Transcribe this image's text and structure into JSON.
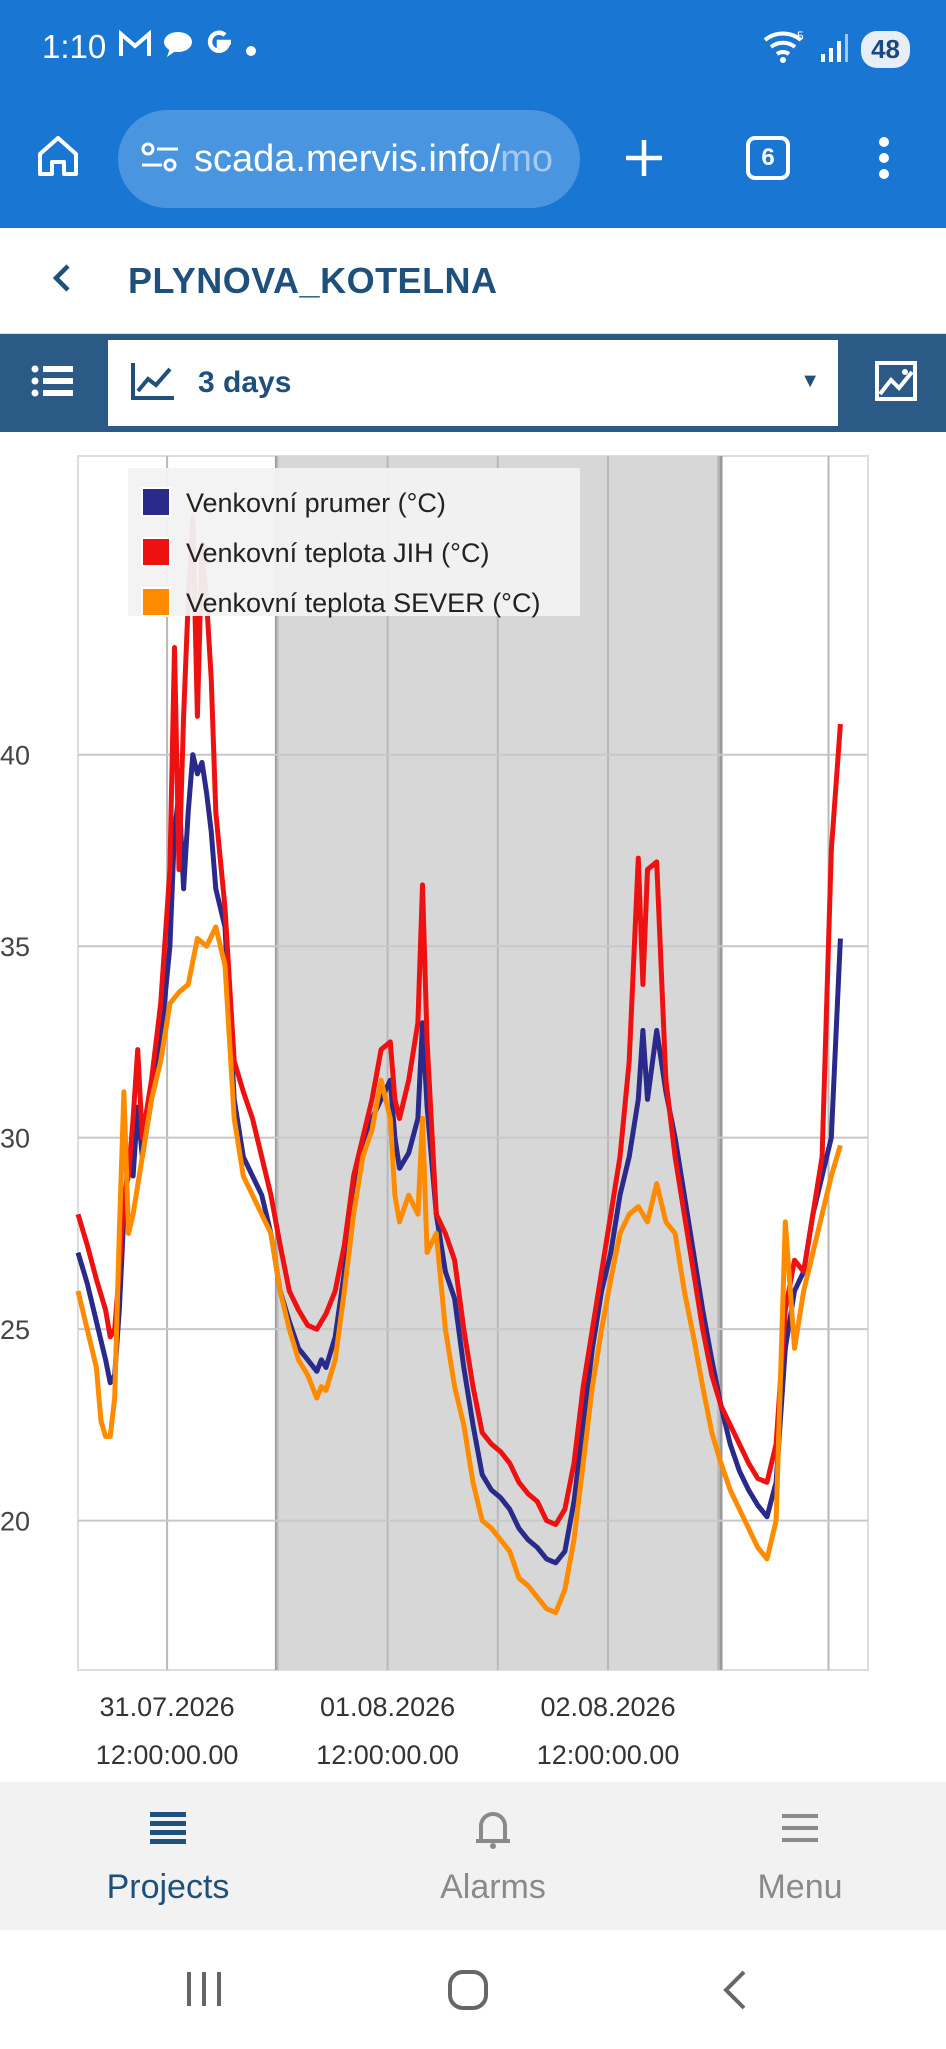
{
  "status": {
    "time": "1:10",
    "battery": "48"
  },
  "browser": {
    "url_main": "scada.mervis.info/",
    "url_fade": "mo",
    "tab_count": "6"
  },
  "header": {
    "title": "PLYNOVA_KOTELNA"
  },
  "toolbar": {
    "range_label": "3 days"
  },
  "nav": {
    "projects": "Projects",
    "alarms": "Alarms",
    "menu": "Menu"
  },
  "colors": {
    "accent": "#1976d2",
    "toolbar": "#2b5a86",
    "series1": "#2a2a8a",
    "series2": "#ee1111",
    "series3": "#ff8c00"
  },
  "chart_data": {
    "type": "line",
    "title": "",
    "xlabel": "",
    "ylabel": "",
    "x_unit": "hours",
    "xlim": [
      0,
      86
    ],
    "ylim": [
      16.1,
      47.8
    ],
    "yticks": [
      20,
      25,
      30,
      35,
      40
    ],
    "xticks": [
      {
        "x": 9.7,
        "date": "31.07.2026",
        "time": "12:00:00.00"
      },
      {
        "x": 33.7,
        "date": "01.08.2026",
        "time": "12:00:00.00"
      },
      {
        "x": 57.7,
        "date": "02.08.2026",
        "time": "12:00:00.00"
      }
    ],
    "shaded_ranges": [
      [
        21.6,
        70.0
      ]
    ],
    "legend": {
      "position": "top-left"
    },
    "grid": true,
    "series": [
      {
        "name": "Venkovní prumer (°C)",
        "color": "#2a2a8a",
        "points": [
          [
            0,
            27.0
          ],
          [
            1,
            26.2
          ],
          [
            2,
            25.2
          ],
          [
            3,
            24.2
          ],
          [
            3.5,
            23.6
          ],
          [
            4,
            23.8
          ],
          [
            4.5,
            25.5
          ],
          [
            5,
            28.0
          ],
          [
            5.5,
            29.5
          ],
          [
            6,
            29.0
          ],
          [
            6.5,
            30.8
          ],
          [
            7,
            29.5
          ],
          [
            8,
            31.0
          ],
          [
            9,
            32.5
          ],
          [
            10,
            35.0
          ],
          [
            10.5,
            38.0
          ],
          [
            11,
            39.0
          ],
          [
            11.5,
            36.5
          ],
          [
            12,
            38.5
          ],
          [
            12.5,
            40.0
          ],
          [
            13,
            39.5
          ],
          [
            13.5,
            39.8
          ],
          [
            14,
            39.0
          ],
          [
            14.5,
            38.0
          ],
          [
            15,
            36.5
          ],
          [
            16,
            35.5
          ],
          [
            17,
            31.0
          ],
          [
            18,
            29.5
          ],
          [
            19,
            29.0
          ],
          [
            20,
            28.5
          ],
          [
            21,
            27.5
          ],
          [
            22,
            26.0
          ],
          [
            23,
            25.2
          ],
          [
            24,
            24.5
          ],
          [
            25,
            24.2
          ],
          [
            26,
            23.9
          ],
          [
            26.5,
            24.2
          ],
          [
            27,
            24.0
          ],
          [
            28,
            24.8
          ],
          [
            29,
            26.5
          ],
          [
            30,
            28.5
          ],
          [
            31,
            29.8
          ],
          [
            32,
            30.5
          ],
          [
            33,
            31.0
          ],
          [
            34,
            31.5
          ],
          [
            34.5,
            30.0
          ],
          [
            35,
            29.2
          ],
          [
            36,
            29.6
          ],
          [
            37,
            30.5
          ],
          [
            37.5,
            33.0
          ],
          [
            38,
            30.8
          ],
          [
            39,
            28.0
          ],
          [
            40,
            26.5
          ],
          [
            41,
            25.8
          ],
          [
            42,
            24.0
          ],
          [
            43,
            22.5
          ],
          [
            44,
            21.2
          ],
          [
            45,
            20.8
          ],
          [
            46,
            20.6
          ],
          [
            47,
            20.3
          ],
          [
            48,
            19.8
          ],
          [
            49,
            19.5
          ],
          [
            50,
            19.3
          ],
          [
            51,
            19.0
          ],
          [
            52,
            18.9
          ],
          [
            53,
            19.2
          ],
          [
            54,
            20.5
          ],
          [
            55,
            22.5
          ],
          [
            56,
            24.5
          ],
          [
            57,
            26.0
          ],
          [
            58,
            27.0
          ],
          [
            59,
            28.5
          ],
          [
            60,
            29.5
          ],
          [
            61,
            31.0
          ],
          [
            61.5,
            32.8
          ],
          [
            62,
            31.0
          ],
          [
            63,
            32.8
          ],
          [
            64,
            31.2
          ],
          [
            65,
            30.0
          ],
          [
            66,
            28.5
          ],
          [
            67,
            27.0
          ],
          [
            68,
            25.5
          ],
          [
            69,
            24.2
          ],
          [
            70,
            23.0
          ],
          [
            71,
            22.0
          ],
          [
            72,
            21.3
          ],
          [
            73,
            20.8
          ],
          [
            74,
            20.4
          ],
          [
            75,
            20.1
          ],
          [
            76,
            21.0
          ],
          [
            77,
            24.5
          ],
          [
            78,
            26.0
          ],
          [
            79,
            26.5
          ],
          [
            80,
            28.0
          ],
          [
            81,
            29.0
          ],
          [
            82,
            30.0
          ],
          [
            83,
            35.2
          ]
        ]
      },
      {
        "name": "Venkovní teplota JIH (°C)",
        "color": "#ee1111",
        "points": [
          [
            0,
            28.0
          ],
          [
            1,
            27.2
          ],
          [
            2,
            26.3
          ],
          [
            3,
            25.5
          ],
          [
            3.5,
            24.8
          ],
          [
            4,
            25.0
          ],
          [
            4.5,
            26.5
          ],
          [
            5,
            28.5
          ],
          [
            5.5,
            29.0
          ],
          [
            6,
            30.5
          ],
          [
            6.5,
            32.3
          ],
          [
            7,
            30.0
          ],
          [
            8,
            31.5
          ],
          [
            9,
            33.5
          ],
          [
            10,
            37.0
          ],
          [
            10.5,
            42.8
          ],
          [
            11,
            37.0
          ],
          [
            11.5,
            41.0
          ],
          [
            12,
            44.0
          ],
          [
            12.5,
            46.2
          ],
          [
            13,
            41.0
          ],
          [
            13.5,
            45.5
          ],
          [
            14,
            44.0
          ],
          [
            14.5,
            42.0
          ],
          [
            15,
            38.5
          ],
          [
            16,
            36.0
          ],
          [
            17,
            32.0
          ],
          [
            18,
            31.2
          ],
          [
            19,
            30.5
          ],
          [
            20,
            29.5
          ],
          [
            21,
            28.5
          ],
          [
            22,
            27.2
          ],
          [
            23,
            26.0
          ],
          [
            24,
            25.5
          ],
          [
            25,
            25.1
          ],
          [
            26,
            25.0
          ],
          [
            27,
            25.4
          ],
          [
            28,
            26.0
          ],
          [
            29,
            27.2
          ],
          [
            30,
            29.0
          ],
          [
            31,
            30.0
          ],
          [
            32,
            31.0
          ],
          [
            33,
            32.3
          ],
          [
            34,
            32.5
          ],
          [
            34.5,
            31.0
          ],
          [
            35,
            30.5
          ],
          [
            36,
            31.5
          ],
          [
            37,
            33.0
          ],
          [
            37.5,
            36.6
          ],
          [
            38,
            32.5
          ],
          [
            39,
            28.0
          ],
          [
            40,
            27.5
          ],
          [
            41,
            26.8
          ],
          [
            42,
            25.0
          ],
          [
            43,
            23.5
          ],
          [
            44,
            22.3
          ],
          [
            45,
            22.0
          ],
          [
            46,
            21.8
          ],
          [
            47,
            21.5
          ],
          [
            48,
            21.0
          ],
          [
            49,
            20.7
          ],
          [
            50,
            20.5
          ],
          [
            51,
            20.0
          ],
          [
            52,
            19.9
          ],
          [
            53,
            20.3
          ],
          [
            54,
            21.5
          ],
          [
            55,
            23.5
          ],
          [
            56,
            25.0
          ],
          [
            57,
            26.5
          ],
          [
            58,
            28.0
          ],
          [
            59,
            29.5
          ],
          [
            60,
            32.0
          ],
          [
            61,
            37.3
          ],
          [
            61.5,
            34.0
          ],
          [
            62,
            37.0
          ],
          [
            63,
            37.2
          ],
          [
            64,
            31.5
          ],
          [
            65,
            29.5
          ],
          [
            66,
            28.0
          ],
          [
            67,
            26.5
          ],
          [
            68,
            25.0
          ],
          [
            69,
            23.8
          ],
          [
            70,
            23.0
          ],
          [
            71,
            22.5
          ],
          [
            72,
            22.0
          ],
          [
            73,
            21.5
          ],
          [
            74,
            21.1
          ],
          [
            75,
            21.0
          ],
          [
            76,
            22.0
          ],
          [
            77,
            25.5
          ],
          [
            78,
            26.8
          ],
          [
            79,
            26.5
          ],
          [
            80,
            28.0
          ],
          [
            81,
            29.5
          ],
          [
            82,
            37.5
          ],
          [
            83,
            40.8
          ]
        ]
      },
      {
        "name": "Venkovní teplota SEVER (°C)",
        "color": "#ff8c00",
        "points": [
          [
            0,
            26.0
          ],
          [
            1,
            25.0
          ],
          [
            2,
            24.0
          ],
          [
            2.5,
            22.6
          ],
          [
            3,
            22.2
          ],
          [
            3.5,
            22.2
          ],
          [
            4,
            23.2
          ],
          [
            4.5,
            27.5
          ],
          [
            5,
            31.2
          ],
          [
            5.5,
            27.5
          ],
          [
            6,
            28.0
          ],
          [
            7,
            29.5
          ],
          [
            8,
            31.0
          ],
          [
            9,
            32.0
          ],
          [
            10,
            33.5
          ],
          [
            11,
            33.8
          ],
          [
            12,
            34.0
          ],
          [
            13,
            35.2
          ],
          [
            14,
            35.0
          ],
          [
            15,
            35.5
          ],
          [
            16,
            34.5
          ],
          [
            17,
            30.5
          ],
          [
            18,
            29.0
          ],
          [
            19,
            28.5
          ],
          [
            20,
            28.0
          ],
          [
            21,
            27.5
          ],
          [
            22,
            26.0
          ],
          [
            23,
            25.0
          ],
          [
            24,
            24.2
          ],
          [
            25,
            23.8
          ],
          [
            26,
            23.2
          ],
          [
            26.5,
            23.5
          ],
          [
            27,
            23.4
          ],
          [
            28,
            24.2
          ],
          [
            29,
            26.0
          ],
          [
            30,
            28.0
          ],
          [
            31,
            29.5
          ],
          [
            32,
            30.2
          ],
          [
            33,
            31.5
          ],
          [
            34,
            30.5
          ],
          [
            34.5,
            28.5
          ],
          [
            35,
            27.8
          ],
          [
            36,
            28.5
          ],
          [
            37,
            28.0
          ],
          [
            37.5,
            30.5
          ],
          [
            38,
            27.0
          ],
          [
            39,
            27.5
          ],
          [
            40,
            25.0
          ],
          [
            41,
            23.5
          ],
          [
            42,
            22.5
          ],
          [
            43,
            21.0
          ],
          [
            44,
            20.0
          ],
          [
            45,
            19.8
          ],
          [
            46,
            19.5
          ],
          [
            47,
            19.2
          ],
          [
            48,
            18.5
          ],
          [
            49,
            18.3
          ],
          [
            50,
            18.0
          ],
          [
            51,
            17.7
          ],
          [
            52,
            17.6
          ],
          [
            53,
            18.2
          ],
          [
            54,
            19.5
          ],
          [
            55,
            21.5
          ],
          [
            56,
            23.5
          ],
          [
            57,
            25.0
          ],
          [
            58,
            26.3
          ],
          [
            59,
            27.5
          ],
          [
            60,
            28.0
          ],
          [
            61,
            28.2
          ],
          [
            62,
            27.8
          ],
          [
            63,
            28.8
          ],
          [
            64,
            27.8
          ],
          [
            65,
            27.5
          ],
          [
            66,
            26.0
          ],
          [
            67,
            24.8
          ],
          [
            68,
            23.5
          ],
          [
            69,
            22.3
          ],
          [
            70,
            21.5
          ],
          [
            71,
            20.8
          ],
          [
            72,
            20.3
          ],
          [
            73,
            19.8
          ],
          [
            74,
            19.3
          ],
          [
            75,
            19.0
          ],
          [
            76,
            20.0
          ],
          [
            77,
            27.8
          ],
          [
            78,
            24.5
          ],
          [
            79,
            26.0
          ],
          [
            80,
            27.0
          ],
          [
            81,
            28.0
          ],
          [
            82,
            29.0
          ],
          [
            83,
            29.8
          ]
        ]
      }
    ]
  }
}
